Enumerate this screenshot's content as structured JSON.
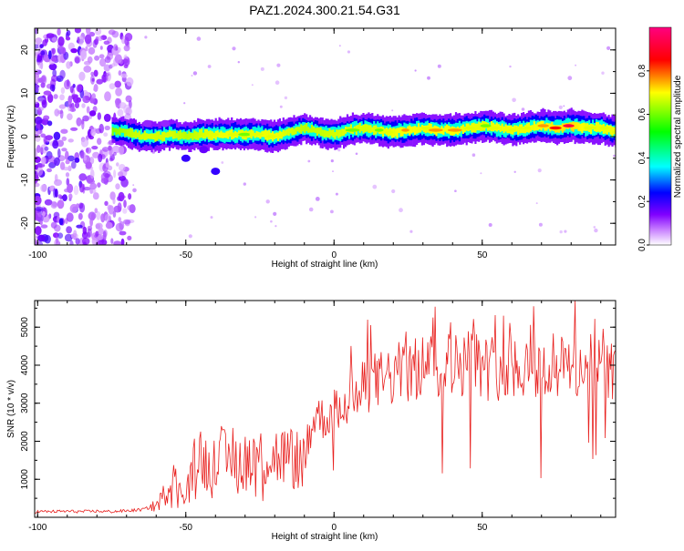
{
  "figure_title": "PAZ1.2024.300.21.54.G31",
  "chart_data": [
    {
      "type": "heatmap",
      "xlabel": "Height of straight line (km)",
      "ylabel": "Frequency (Hz)",
      "xlim": [
        -101,
        95
      ],
      "ylim": [
        -25,
        25
      ],
      "x_ticks": [
        "-100",
        "-50",
        "0",
        "50"
      ],
      "y_ticks": [
        "-20",
        "-10",
        "0",
        "10",
        "20"
      ],
      "colorbar": {
        "label": "Normalized spectral amplitude",
        "range": [
          0,
          1
        ],
        "ticks": [
          "0.0",
          "0.2",
          "0.4",
          "0.6",
          "0.8"
        ],
        "colors": [
          "#ffffff",
          "#a000ff",
          "#0000ff",
          "#00ffff",
          "#00ff00",
          "#ffff00",
          "#ff0000",
          "#ff00a0"
        ]
      },
      "signal_track": {
        "x": [
          -75,
          -70,
          -65,
          -60,
          -55,
          -50,
          -45,
          -40,
          -35,
          -30,
          -25,
          -20,
          -15,
          -10,
          -5,
          0,
          5,
          10,
          15,
          20,
          25,
          30,
          35,
          40,
          45,
          50,
          55,
          60,
          65,
          70,
          75,
          80,
          85,
          90,
          95
        ],
        "frequency": [
          1.5,
          1.0,
          0.0,
          0.0,
          0.5,
          0.0,
          0.5,
          0.5,
          0.5,
          0.5,
          0.5,
          0.0,
          1.0,
          2.0,
          1.0,
          0.5,
          1.5,
          2.0,
          1.5,
          1.0,
          1.5,
          2.0,
          1.5,
          1.5,
          2.0,
          2.5,
          2.0,
          1.5,
          2.0,
          2.5,
          2.0,
          2.5,
          2.0,
          2.0,
          1.0
        ],
        "amplitude": [
          0.3,
          0.5,
          0.6,
          0.6,
          0.6,
          0.5,
          0.6,
          0.7,
          0.7,
          0.65,
          0.7,
          0.7,
          0.6,
          0.5,
          0.55,
          0.6,
          0.65,
          0.6,
          0.65,
          0.7,
          0.75,
          0.7,
          0.75,
          0.75,
          0.7,
          0.65,
          0.7,
          0.7,
          0.7,
          0.75,
          0.8,
          0.85,
          0.7,
          0.7,
          0.7
        ]
      }
    },
    {
      "type": "line",
      "xlabel": "Height of straight line (km)",
      "ylabel": "SNR (10 * v/v)",
      "xlim": [
        -101,
        95
      ],
      "ylim": [
        0,
        5700
      ],
      "x_ticks": [
        "-100",
        "-50",
        "0",
        "50"
      ],
      "y_ticks": [
        "1000",
        "2000",
        "3000",
        "4000",
        "5000"
      ],
      "series": [
        {
          "color": "#e8201e",
          "x": [
            -101,
            -95,
            -90,
            -85,
            -80,
            -75,
            -70,
            -65,
            -60,
            -58,
            -56,
            -54,
            -52,
            -50,
            -48,
            -46,
            -44,
            -42,
            -40,
            -38,
            -36,
            -34,
            -32,
            -30,
            -28,
            -26,
            -24,
            -22,
            -20,
            -18,
            -16,
            -14,
            -12,
            -10,
            -8,
            -6,
            -4,
            -2,
            0,
            2,
            4,
            6,
            8,
            10,
            12,
            14,
            16,
            18,
            20,
            22,
            24,
            26,
            28,
            30,
            32,
            34,
            36,
            38,
            40,
            42,
            44,
            46,
            48,
            50,
            52,
            54,
            56,
            58,
            60,
            62,
            64,
            66,
            68,
            70,
            72,
            74,
            76,
            78,
            80,
            82,
            84,
            86,
            88,
            90,
            92,
            95
          ],
          "y": [
            150,
            150,
            160,
            150,
            160,
            150,
            170,
            200,
            300,
            500,
            800,
            1000,
            700,
            650,
            1000,
            1800,
            1500,
            1400,
            1900,
            1600,
            1400,
            1700,
            1500,
            1500,
            1600,
            1700,
            1500,
            1650,
            1600,
            1600,
            1600,
            1550,
            1500,
            1500,
            2200,
            2800,
            2600,
            2600,
            2800,
            2800,
            3000,
            3100,
            3200,
            3400,
            3500,
            3600,
            3600,
            3700,
            3700,
            3800,
            3900,
            3800,
            3900,
            4000,
            4000,
            4100,
            4000,
            4100,
            4000,
            4000,
            4100,
            4100,
            4100,
            4000,
            3900,
            4000,
            3900,
            4000,
            4000,
            4000,
            4000,
            4000,
            3900,
            3800,
            3900,
            3900,
            3900,
            4000,
            4000,
            3900,
            4000,
            4000,
            3900,
            4000,
            3800,
            3900
          ]
        }
      ]
    }
  ]
}
